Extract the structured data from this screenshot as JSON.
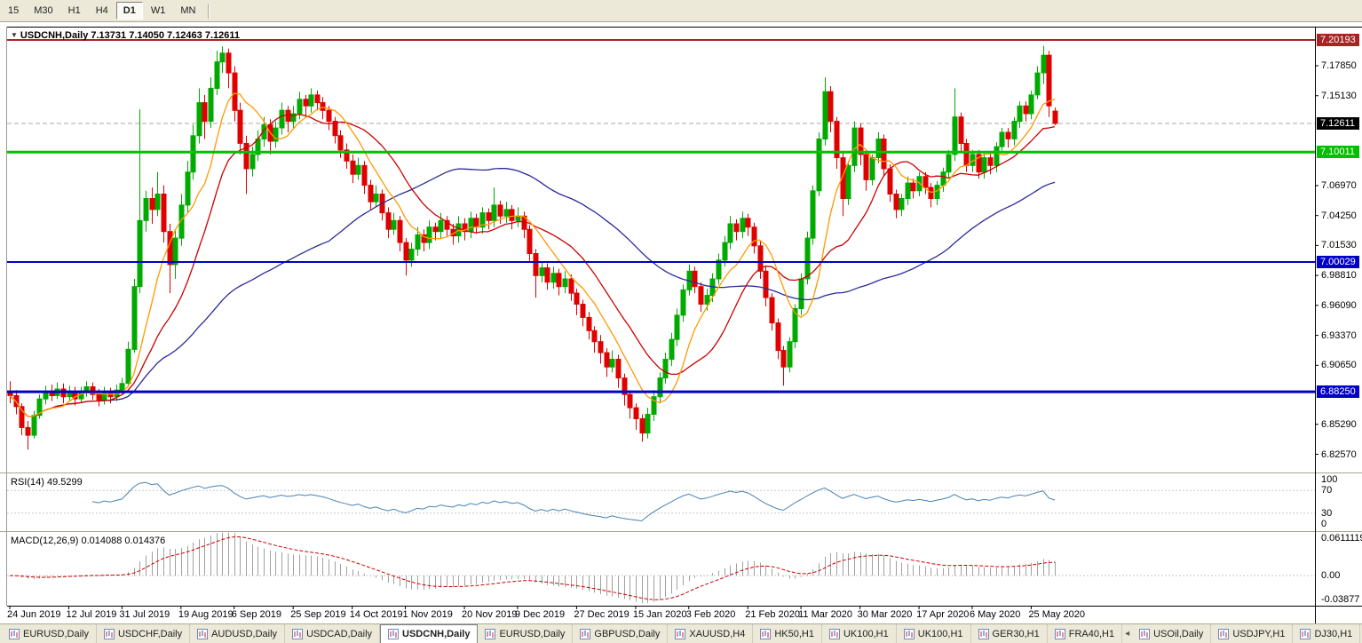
{
  "toolbar": {
    "timeframes": [
      {
        "label": "15"
      },
      {
        "label": "M30"
      },
      {
        "label": "H1"
      },
      {
        "label": "H4"
      },
      {
        "label": "D1",
        "active": true
      },
      {
        "label": "W1"
      },
      {
        "label": "MN"
      }
    ]
  },
  "chart": {
    "symbol": "USDCNH",
    "period": "Daily",
    "title_full": "USDCNH,Daily 7.13731 7.14050 7.12463 7.12611"
  },
  "colors": {
    "up": "#00AA00",
    "down": "#E00000",
    "ma_fast": "#FF9900",
    "ma_mid": "#CC0000",
    "ma_slow": "#2A2A9B",
    "rsi": "#4682B4",
    "hist": "#A0A0A0",
    "signal": "#CC0000",
    "current": "#A9A9A9"
  },
  "price_scale": {
    "ticks": [
      {
        "v": 7.1785,
        "t": "7.17850"
      },
      {
        "v": 7.1513,
        "t": "7.15130"
      },
      {
        "v": 7.0697,
        "t": "7.06970"
      },
      {
        "v": 7.0425,
        "t": "7.04250"
      },
      {
        "v": 7.0153,
        "t": "7.01530"
      },
      {
        "v": 6.9881,
        "t": "6.98810"
      },
      {
        "v": 6.9609,
        "t": "6.96090"
      },
      {
        "v": 6.9337,
        "t": "6.93370"
      },
      {
        "v": 6.9065,
        "t": "6.90650"
      },
      {
        "v": 6.8529,
        "t": "6.85290"
      },
      {
        "v": 6.8257,
        "t": "6.82570"
      }
    ],
    "badges": [
      {
        "v": 7.20193,
        "t": "7.20193",
        "bg": "#AA2222"
      },
      {
        "v": 7.12611,
        "t": "7.12611",
        "bg": "#000000"
      },
      {
        "v": 7.10011,
        "t": "7.10011",
        "bg": "#00C000"
      },
      {
        "v": 7.00029,
        "t": "7.00029",
        "bg": "#0000C8"
      },
      {
        "v": 6.8825,
        "t": "6.88250",
        "bg": "#0000C8"
      }
    ]
  },
  "indicators": {
    "rsi": {
      "label_full": "RSI(14) 49.5299",
      "value": "49.5299",
      "color": "#4682B4",
      "lev": [
        70,
        30
      ],
      "scale": [
        {
          "v": 100,
          "t": "100"
        },
        {
          "v": 70,
          "t": "70"
        },
        {
          "v": 30,
          "t": "30"
        },
        {
          "v": 0,
          "t": "0"
        }
      ]
    },
    "macd": {
      "label_full": "MACD(12,26,9) 0.014088 0.014376",
      "values": "0.014088 0.014376",
      "scale": [
        {
          "v": 0.0611119,
          "t": "0.0611119"
        },
        {
          "v": 0,
          "t": "0.00"
        },
        {
          "v": -0.03877,
          "t": "-0.03877"
        }
      ]
    }
  },
  "tab_bar": {
    "scroll_after_index": 12,
    "tabs": [
      {
        "label": "EURUSD,Daily"
      },
      {
        "label": "USDCHF,Daily"
      },
      {
        "label": "AUDUSD,Daily"
      },
      {
        "label": "USDCAD,Daily"
      },
      {
        "label": "USDCNH,Daily",
        "active": true
      },
      {
        "label": "EURUSD,Daily"
      },
      {
        "label": "GBPUSD,Daily"
      },
      {
        "label": "XAUUSD,H4"
      },
      {
        "label": "HK50,H1"
      },
      {
        "label": "UK100,H1"
      },
      {
        "label": "UK100,H1"
      },
      {
        "label": "GER30,H1"
      },
      {
        "label": "FRA40,H1"
      },
      {
        "label": "USOil,Daily"
      },
      {
        "label": "USDJPY,H1"
      },
      {
        "label": "DJ30,H1"
      }
    ]
  },
  "chart_data": {
    "type": "candlestick",
    "symbol": "USDCNH",
    "timeframe": "Daily",
    "current_price": 7.12611,
    "ohlc_current": {
      "open": 7.13731,
      "high": 7.1405,
      "low": 7.12463,
      "close": 7.12611
    },
    "y_range": [
      6.81,
      7.214
    ],
    "hlines": [
      {
        "v": 7.20193,
        "c": "#AA2222",
        "w": 2
      },
      {
        "v": 7.10011,
        "c": "#00C000",
        "w": 3
      },
      {
        "v": 7.00029,
        "c": "#0000C8",
        "w": 2
      },
      {
        "v": 6.8825,
        "c": "#0000C8",
        "w": 3
      }
    ],
    "moving_averages": [
      {
        "period": 8,
        "color": "#FF9900"
      },
      {
        "period": 16,
        "color": "#CC0000"
      },
      {
        "period": 55,
        "color": "#2A2A9B"
      }
    ],
    "x_labels": [
      {
        "i": 0,
        "t": "24 Jun 2019"
      },
      {
        "i": 10,
        "t": "12 Jul 2019"
      },
      {
        "i": 19,
        "t": "31 Jul 2019"
      },
      {
        "i": 29,
        "t": "19 Aug 2019"
      },
      {
        "i": 38,
        "t": "6 Sep 2019"
      },
      {
        "i": 48,
        "t": "25 Sep 2019"
      },
      {
        "i": 58,
        "t": "14 Oct 2019"
      },
      {
        "i": 67,
        "t": "1 Nov 2019"
      },
      {
        "i": 77,
        "t": "20 Nov 2019"
      },
      {
        "i": 86,
        "t": "9 Dec 2019"
      },
      {
        "i": 96,
        "t": "27 Dec 2019"
      },
      {
        "i": 106,
        "t": "15 Jan 2020"
      },
      {
        "i": 115,
        "t": "3 Feb 2020"
      },
      {
        "i": 125,
        "t": "21 Feb 2020"
      },
      {
        "i": 134,
        "t": "11 Mar 2020"
      },
      {
        "i": 144,
        "t": "30 Mar 2020"
      },
      {
        "i": 154,
        "t": "17 Apr 2020"
      },
      {
        "i": 163,
        "t": "6 May 2020"
      },
      {
        "i": 173,
        "t": "25 May 2020"
      }
    ],
    "candles": [
      [
        6.883,
        6.892,
        6.872,
        6.879
      ],
      [
        6.879,
        6.884,
        6.862,
        6.869
      ],
      [
        6.869,
        6.872,
        6.843,
        6.85
      ],
      [
        6.85,
        6.856,
        6.83,
        6.843
      ],
      [
        6.843,
        6.865,
        6.84,
        6.861
      ],
      [
        6.861,
        6.88,
        6.858,
        6.876
      ],
      [
        6.876,
        6.888,
        6.871,
        6.883
      ],
      [
        6.883,
        6.889,
        6.874,
        6.879
      ],
      [
        6.879,
        6.891,
        6.876,
        6.885
      ],
      [
        6.885,
        6.89,
        6.872,
        6.878
      ],
      [
        6.878,
        6.888,
        6.874,
        6.883
      ],
      [
        6.883,
        6.887,
        6.87,
        6.876
      ],
      [
        6.876,
        6.887,
        6.872,
        6.882
      ],
      [
        6.882,
        6.892,
        6.878,
        6.887
      ],
      [
        6.887,
        6.891,
        6.875,
        6.88
      ],
      [
        6.88,
        6.885,
        6.869,
        6.875
      ],
      [
        6.875,
        6.887,
        6.871,
        6.882
      ],
      [
        6.882,
        6.886,
        6.872,
        6.878
      ],
      [
        6.878,
        6.889,
        6.874,
        6.884
      ],
      [
        6.884,
        6.895,
        6.88,
        6.89
      ],
      [
        6.89,
        6.928,
        6.888,
        6.921
      ],
      [
        6.921,
        6.985,
        6.918,
        6.978
      ],
      [
        6.978,
        7.139,
        6.972,
        7.038
      ],
      [
        7.038,
        7.065,
        7.028,
        7.058
      ],
      [
        7.058,
        7.068,
        7.035,
        7.048
      ],
      [
        7.048,
        7.082,
        7.042,
        7.062
      ],
      [
        7.062,
        7.07,
        7.018,
        7.028
      ],
      [
        7.028,
        7.035,
        6.972,
        6.998
      ],
      [
        6.998,
        7.03,
        6.985,
        7.022
      ],
      [
        7.022,
        7.062,
        7.015,
        7.052
      ],
      [
        7.052,
        7.092,
        7.045,
        7.082
      ],
      [
        7.082,
        7.125,
        7.075,
        7.115
      ],
      [
        7.115,
        7.158,
        7.108,
        7.145
      ],
      [
        7.145,
        7.152,
        7.112,
        7.128
      ],
      [
        7.128,
        7.168,
        7.122,
        7.158
      ],
      [
        7.158,
        7.192,
        7.152,
        7.182
      ],
      [
        7.182,
        7.196,
        7.172,
        7.19
      ],
      [
        7.19,
        7.194,
        7.158,
        7.172
      ],
      [
        7.172,
        7.178,
        7.128,
        7.138
      ],
      [
        7.138,
        7.145,
        7.098,
        7.108
      ],
      [
        7.108,
        7.115,
        7.062,
        7.085
      ],
      [
        7.085,
        7.105,
        7.078,
        7.098
      ],
      [
        7.098,
        7.12,
        7.092,
        7.112
      ],
      [
        7.112,
        7.132,
        7.105,
        7.125
      ],
      [
        7.125,
        7.13,
        7.098,
        7.11
      ],
      [
        7.11,
        7.128,
        7.104,
        7.122
      ],
      [
        7.122,
        7.145,
        7.116,
        7.138
      ],
      [
        7.138,
        7.142,
        7.118,
        7.128
      ],
      [
        7.128,
        7.142,
        7.122,
        7.135
      ],
      [
        7.135,
        7.155,
        7.13,
        7.148
      ],
      [
        7.148,
        7.152,
        7.132,
        7.142
      ],
      [
        7.142,
        7.158,
        7.136,
        7.152
      ],
      [
        7.152,
        7.156,
        7.138,
        7.145
      ],
      [
        7.145,
        7.15,
        7.13,
        7.138
      ],
      [
        7.138,
        7.142,
        7.12,
        7.128
      ],
      [
        7.128,
        7.132,
        7.108,
        7.115
      ],
      [
        7.115,
        7.12,
        7.095,
        7.102
      ],
      [
        7.102,
        7.108,
        7.085,
        7.092
      ],
      [
        7.092,
        7.098,
        7.072,
        7.08
      ],
      [
        7.08,
        7.095,
        7.075,
        7.088
      ],
      [
        7.088,
        7.092,
        7.062,
        7.07
      ],
      [
        7.07,
        7.075,
        7.048,
        7.055
      ],
      [
        7.055,
        7.07,
        7.05,
        7.062
      ],
      [
        7.062,
        7.066,
        7.038,
        7.045
      ],
      [
        7.045,
        7.05,
        7.022,
        7.03
      ],
      [
        7.03,
        7.045,
        7.025,
        7.038
      ],
      [
        7.038,
        7.042,
        7.01,
        7.018
      ],
      [
        7.018,
        7.022,
        6.988,
        7.002
      ],
      [
        7.002,
        7.018,
        6.996,
        7.012
      ],
      [
        7.012,
        7.032,
        7.006,
        7.025
      ],
      [
        7.025,
        7.03,
        7.01,
        7.018
      ],
      [
        7.018,
        7.038,
        7.012,
        7.032
      ],
      [
        7.032,
        7.036,
        7.02,
        7.028
      ],
      [
        7.028,
        7.045,
        7.022,
        7.038
      ],
      [
        7.038,
        7.042,
        7.024,
        7.03
      ],
      [
        7.03,
        7.035,
        7.016,
        7.024
      ],
      [
        7.024,
        7.042,
        7.018,
        7.035
      ],
      [
        7.035,
        7.04,
        7.02,
        7.028
      ],
      [
        7.028,
        7.046,
        7.022,
        7.04
      ],
      [
        7.04,
        7.044,
        7.026,
        7.032
      ],
      [
        7.032,
        7.05,
        7.026,
        7.045
      ],
      [
        7.045,
        7.049,
        7.03,
        7.038
      ],
      [
        7.038,
        7.068,
        7.032,
        7.052
      ],
      [
        7.052,
        7.056,
        7.035,
        7.042
      ],
      [
        7.042,
        7.055,
        7.036,
        7.048
      ],
      [
        7.048,
        7.052,
        7.03,
        7.038
      ],
      [
        7.038,
        7.05,
        7.032,
        7.042
      ],
      [
        7.042,
        7.046,
        7.022,
        7.03
      ],
      [
        7.03,
        7.034,
        7.0,
        7.008
      ],
      [
        7.008,
        7.012,
        6.968,
        6.988
      ],
      [
        6.988,
        7.0,
        6.982,
        6.995
      ],
      [
        6.995,
        6.999,
        6.975,
        6.982
      ],
      [
        6.982,
        6.996,
        6.976,
        6.99
      ],
      [
        6.99,
        6.994,
        6.97,
        6.978
      ],
      [
        6.978,
        6.992,
        6.972,
        6.985
      ],
      [
        6.985,
        6.989,
        6.965,
        6.972
      ],
      [
        6.972,
        6.976,
        6.952,
        6.962
      ],
      [
        6.962,
        6.966,
        6.942,
        6.95
      ],
      [
        6.95,
        6.955,
        6.93,
        6.938
      ],
      [
        6.938,
        6.942,
        6.918,
        6.928
      ],
      [
        6.928,
        6.934,
        6.908,
        6.918
      ],
      [
        6.918,
        6.922,
        6.896,
        6.905
      ],
      [
        6.905,
        6.92,
        6.9,
        6.912
      ],
      [
        6.912,
        6.916,
        6.886,
        6.895
      ],
      [
        6.895,
        6.899,
        6.87,
        6.88
      ],
      [
        6.88,
        6.884,
        6.858,
        6.868
      ],
      [
        6.868,
        6.872,
        6.848,
        6.858
      ],
      [
        6.858,
        6.862,
        6.837,
        6.845
      ],
      [
        6.845,
        6.868,
        6.84,
        6.862
      ],
      [
        6.862,
        6.884,
        6.856,
        6.878
      ],
      [
        6.878,
        6.9,
        6.872,
        6.895
      ],
      [
        6.895,
        6.918,
        6.89,
        6.912
      ],
      [
        6.912,
        6.936,
        6.906,
        6.93
      ],
      [
        6.93,
        6.958,
        6.924,
        6.952
      ],
      [
        6.952,
        6.98,
        6.946,
        6.975
      ],
      [
        6.975,
        6.998,
        6.97,
        6.992
      ],
      [
        6.992,
        6.996,
        6.972,
        6.978
      ],
      [
        6.978,
        6.982,
        6.955,
        6.962
      ],
      [
        6.962,
        6.976,
        6.956,
        6.97
      ],
      [
        6.97,
        6.99,
        6.964,
        6.985
      ],
      [
        6.985,
        7.008,
        6.98,
        7.002
      ],
      [
        7.002,
        7.024,
        6.996,
        7.018
      ],
      [
        7.018,
        7.042,
        7.012,
        7.035
      ],
      [
        7.035,
        7.039,
        7.02,
        7.028
      ],
      [
        7.028,
        7.046,
        7.022,
        7.04
      ],
      [
        7.04,
        7.044,
        7.024,
        7.032
      ],
      [
        7.032,
        7.036,
        7.008,
        7.015
      ],
      [
        7.015,
        7.019,
        6.985,
        6.992
      ],
      [
        6.992,
        6.996,
        6.96,
        6.968
      ],
      [
        6.968,
        6.972,
        6.938,
        6.945
      ],
      [
        6.945,
        6.949,
        6.912,
        6.92
      ],
      [
        6.92,
        6.924,
        6.888,
        6.905
      ],
      [
        6.905,
        6.932,
        6.9,
        6.928
      ],
      [
        6.928,
        6.962,
        6.922,
        6.958
      ],
      [
        6.958,
        6.99,
        6.952,
        6.985
      ],
      [
        6.985,
        7.028,
        6.98,
        7.022
      ],
      [
        7.022,
        7.07,
        7.016,
        7.065
      ],
      [
        7.065,
        7.118,
        7.06,
        7.112
      ],
      [
        7.112,
        7.168,
        7.106,
        7.155
      ],
      [
        7.155,
        7.16,
        7.118,
        7.128
      ],
      [
        7.128,
        7.132,
        7.085,
        7.095
      ],
      [
        7.095,
        7.099,
        7.042,
        7.058
      ],
      [
        7.058,
        7.092,
        7.052,
        7.088
      ],
      [
        7.088,
        7.128,
        7.082,
        7.122
      ],
      [
        7.122,
        7.126,
        7.088,
        7.098
      ],
      [
        7.098,
        7.102,
        7.065,
        7.075
      ],
      [
        7.075,
        7.098,
        7.07,
        7.095
      ],
      [
        7.095,
        7.118,
        7.09,
        7.112
      ],
      [
        7.112,
        7.116,
        7.078,
        7.085
      ],
      [
        7.085,
        7.089,
        7.055,
        7.062
      ],
      [
        7.062,
        7.066,
        7.04,
        7.048
      ],
      [
        7.048,
        7.062,
        7.042,
        7.058
      ],
      [
        7.058,
        7.078,
        7.052,
        7.072
      ],
      [
        7.072,
        7.076,
        7.058,
        7.065
      ],
      [
        7.065,
        7.082,
        7.06,
        7.078
      ],
      [
        7.078,
        7.082,
        7.062,
        7.068
      ],
      [
        7.068,
        7.072,
        7.05,
        7.058
      ],
      [
        7.058,
        7.074,
        7.052,
        7.07
      ],
      [
        7.07,
        7.086,
        7.064,
        7.082
      ],
      [
        7.082,
        7.102,
        7.076,
        7.098
      ],
      [
        7.098,
        7.158,
        7.092,
        7.132
      ],
      [
        7.132,
        7.136,
        7.1,
        7.108
      ],
      [
        7.108,
        7.112,
        7.082,
        7.088
      ],
      [
        7.088,
        7.102,
        7.082,
        7.098
      ],
      [
        7.098,
        7.102,
        7.076,
        7.082
      ],
      [
        7.082,
        7.099,
        7.076,
        7.095
      ],
      [
        7.095,
        7.099,
        7.08,
        7.088
      ],
      [
        7.088,
        7.109,
        7.082,
        7.105
      ],
      [
        7.105,
        7.122,
        7.1,
        7.118
      ],
      [
        7.118,
        7.122,
        7.104,
        7.112
      ],
      [
        7.112,
        7.132,
        7.106,
        7.128
      ],
      [
        7.128,
        7.146,
        7.122,
        7.142
      ],
      [
        7.142,
        7.146,
        7.128,
        7.135
      ],
      [
        7.135,
        7.156,
        7.13,
        7.152
      ],
      [
        7.152,
        7.178,
        7.148,
        7.172
      ],
      [
        7.172,
        7.1965,
        7.162,
        7.188
      ],
      [
        7.188,
        7.192,
        7.132,
        7.142
      ],
      [
        7.1373,
        7.1405,
        7.1246,
        7.1261
      ]
    ]
  }
}
